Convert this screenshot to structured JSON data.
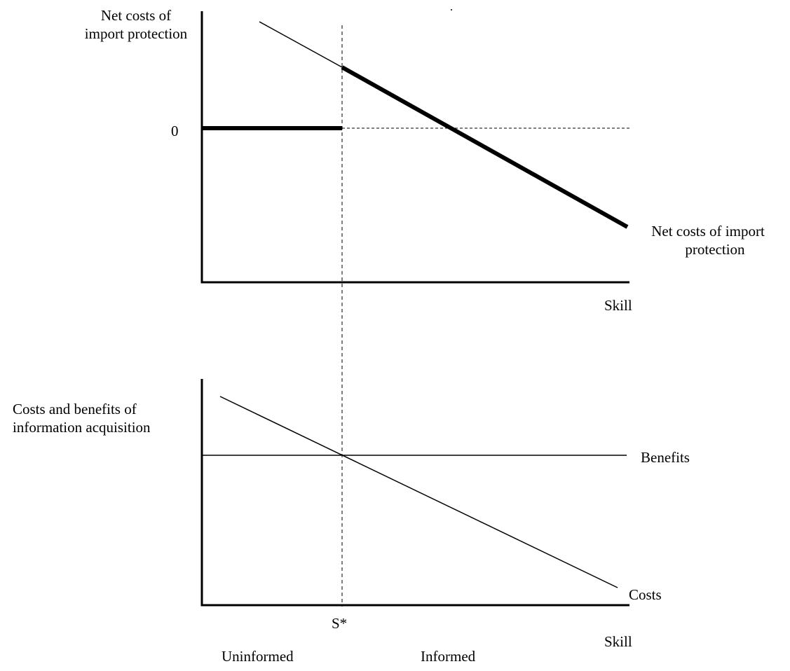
{
  "top_panel": {
    "y_label_line1": "Net costs of",
    "y_label_line2": "import protection",
    "zero_tick": "0",
    "curve_label_line1": "Net costs of import",
    "curve_label_line2": "protection",
    "x_label": "Skill"
  },
  "bottom_panel": {
    "y_label_line1": "Costs and benefits of",
    "y_label_line2": "information acquisition",
    "benefits_label": "Benefits",
    "costs_label": "Costs",
    "x_label": "Skill"
  },
  "threshold": {
    "marker_label": "S*",
    "left_region_label": "Uninformed",
    "right_region_label": "Informed"
  }
}
